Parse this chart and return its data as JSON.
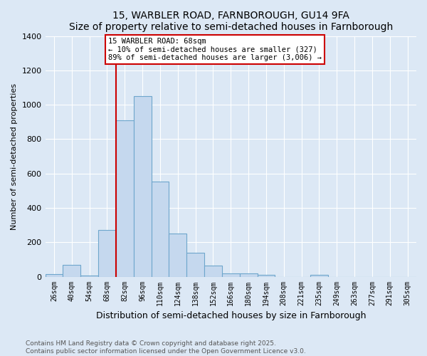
{
  "title1": "15, WARBLER ROAD, FARNBOROUGH, GU14 9FA",
  "title2": "Size of property relative to semi-detached houses in Farnborough",
  "xlabel": "Distribution of semi-detached houses by size in Farnborough",
  "ylabel": "Number of semi-detached properties",
  "categories": [
    "26sqm",
    "40sqm",
    "54sqm",
    "68sqm",
    "82sqm",
    "96sqm",
    "110sqm",
    "124sqm",
    "138sqm",
    "152sqm",
    "166sqm",
    "180sqm",
    "194sqm",
    "208sqm",
    "221sqm",
    "235sqm",
    "249sqm",
    "263sqm",
    "277sqm",
    "291sqm",
    "305sqm"
  ],
  "values": [
    15,
    70,
    5,
    270,
    910,
    1050,
    555,
    250,
    140,
    65,
    20,
    18,
    10,
    0,
    0,
    10,
    0,
    0,
    0,
    0,
    0
  ],
  "bar_color": "#c5d8ee",
  "bar_edge_color": "#6ea6cc",
  "red_line_index": 3,
  "property_line_label": "15 WARBLER ROAD: 68sqm",
  "annotation_line1": "← 10% of semi-detached houses are smaller (327)",
  "annotation_line2": "89% of semi-detached houses are larger (3,006) →",
  "annotation_box_color": "#ffffff",
  "annotation_box_edge": "#cc0000",
  "red_line_color": "#cc0000",
  "ylim": [
    0,
    1400
  ],
  "yticks": [
    0,
    200,
    400,
    600,
    800,
    1000,
    1200,
    1400
  ],
  "footer_line1": "Contains HM Land Registry data © Crown copyright and database right 2025.",
  "footer_line2": "Contains public sector information licensed under the Open Government Licence v3.0.",
  "background_color": "#dce8f5",
  "grid_color": "#ffffff"
}
